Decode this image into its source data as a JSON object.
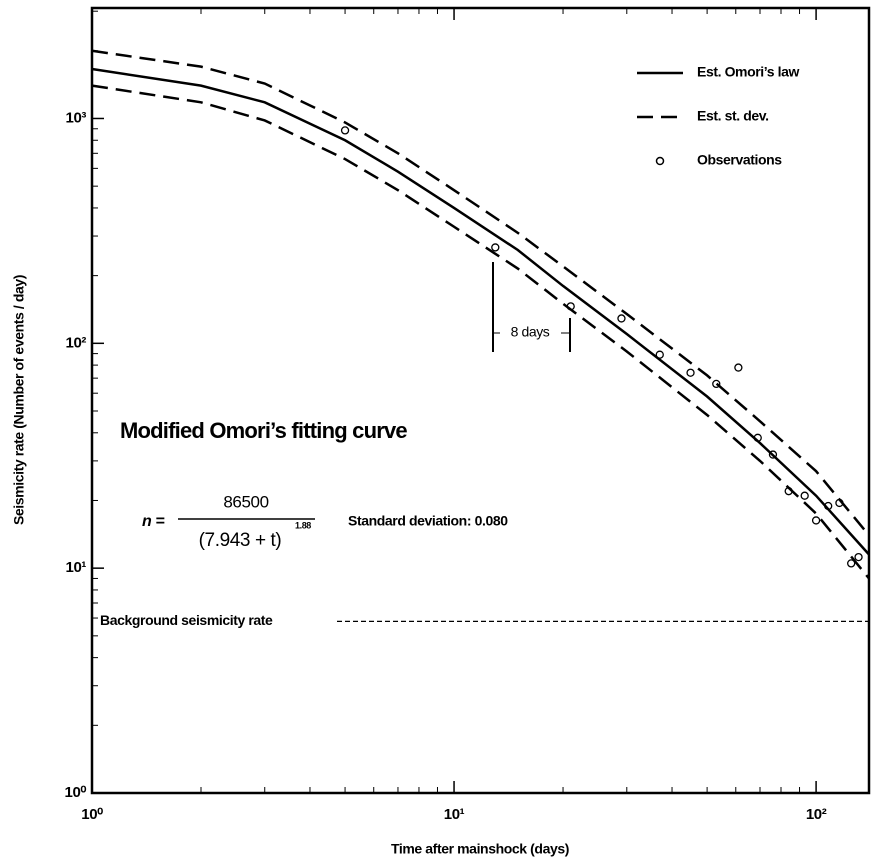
{
  "chart_data": {
    "type": "line",
    "x_label": "Time after mainshock (days)",
    "y_label": "Seismicity rate (Number of events / day)",
    "log_x": true,
    "log_y": true,
    "xlim": [
      1,
      140
    ],
    "ylim": [
      1,
      3100
    ],
    "xticks": [
      {
        "value": 1,
        "label": "10⁰"
      },
      {
        "value": 10,
        "label": "10¹"
      },
      {
        "value": 100,
        "label": "10²"
      }
    ],
    "yticks": [
      {
        "value": 1,
        "label": "10⁰"
      },
      {
        "value": 10,
        "label": "10¹"
      },
      {
        "value": 100,
        "label": "10²"
      },
      {
        "value": 1000,
        "label": "10³"
      }
    ],
    "xminorticks": [
      2,
      3,
      4,
      5,
      6,
      7,
      8,
      9,
      20,
      30,
      40,
      50,
      60,
      70,
      80,
      90
    ],
    "yminorticks": [
      2,
      3,
      4,
      5,
      6,
      7,
      8,
      9,
      20,
      30,
      40,
      50,
      60,
      70,
      80,
      90,
      200,
      300,
      400,
      500,
      600,
      700,
      800,
      900,
      2000,
      3000
    ],
    "legend": "upper right",
    "x": [
      1,
      2,
      3,
      5,
      7,
      10,
      15,
      20,
      30,
      50,
      70,
      100,
      140
    ],
    "series": [
      {
        "name": "Est. Omori’s law",
        "style": "solid",
        "color": "#000000",
        "values": [
          1660,
          1400,
          1180,
          800,
          580,
          400,
          260,
          180,
          110,
          58,
          36,
          21,
          11.5
        ]
      },
      {
        "name": "Est. st. dev.",
        "style": "dashed",
        "color": "#000000",
        "upper": [
          2000,
          1700,
          1430,
          960,
          700,
          480,
          310,
          220,
          135,
          72,
          45,
          27,
          14
        ],
        "lower": [
          1400,
          1180,
          980,
          660,
          480,
          330,
          215,
          150,
          92,
          48,
          30,
          17.5,
          9
        ]
      }
    ],
    "observations": {
      "name": "Observations",
      "color": "#000000",
      "x": [
        5,
        13,
        21,
        29,
        37,
        45,
        53,
        61,
        69,
        76,
        84,
        93,
        100,
        108,
        116,
        125,
        131
      ],
      "y": [
        885,
        267,
        146,
        129,
        89,
        74,
        66,
        78,
        38,
        32,
        22,
        21,
        16.3,
        18.9,
        19.5,
        10.5,
        11.2
      ]
    },
    "background": {
      "label": "Background seismicity rate",
      "value": 5.8
    },
    "interval_label": "8 days",
    "title": "Modified Omori’s fitting curve",
    "equation": {
      "lhs": "n =",
      "numerator": "86500",
      "denominator": "(7.943 + t)",
      "exponent": "1.88"
    },
    "std_label": "Standard deviation:  0.080"
  }
}
